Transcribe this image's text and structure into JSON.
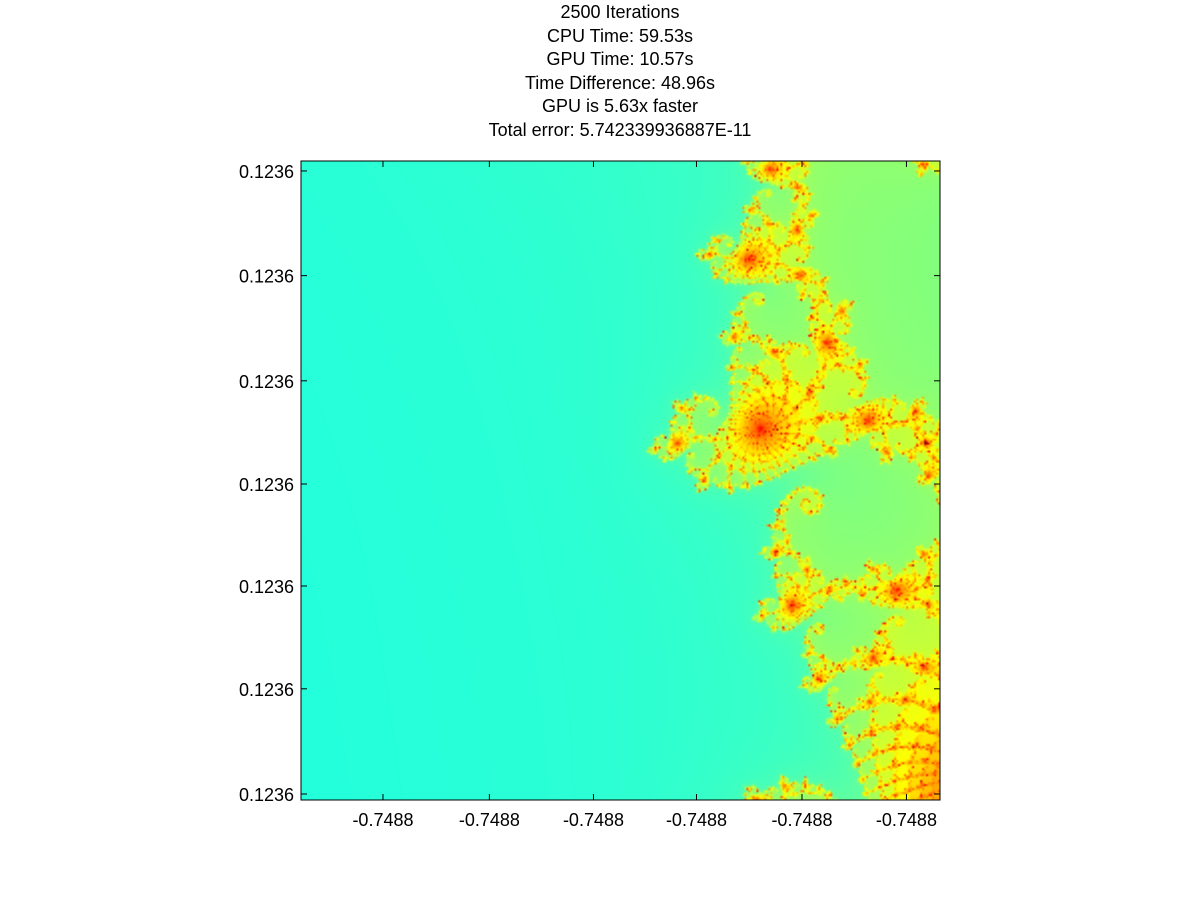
{
  "chart_data": {
    "type": "heatmap",
    "title_lines": [
      "2500 Iterations",
      "CPU Time: 59.53s",
      "GPU Time: 10.57s",
      "Time Difference: 48.96s",
      "GPU is 5.63x faster",
      "Total error: 5.742339936887E-11"
    ],
    "xlabel": "",
    "ylabel": "",
    "x_tick_labels": [
      "-0.7488",
      "-0.7488",
      "-0.7488",
      "-0.7488",
      "-0.7488",
      "-0.7488"
    ],
    "y_tick_labels": [
      "0.1236",
      "0.1236",
      "0.1236",
      "0.1236",
      "0.1236",
      "0.1236",
      "0.1236"
    ],
    "colormap": "jet",
    "fractal": "mandelbrot",
    "max_iterations": 2500,
    "grid": false,
    "colors": {
      "axes": "#000000",
      "background": "#ffffff"
    }
  }
}
